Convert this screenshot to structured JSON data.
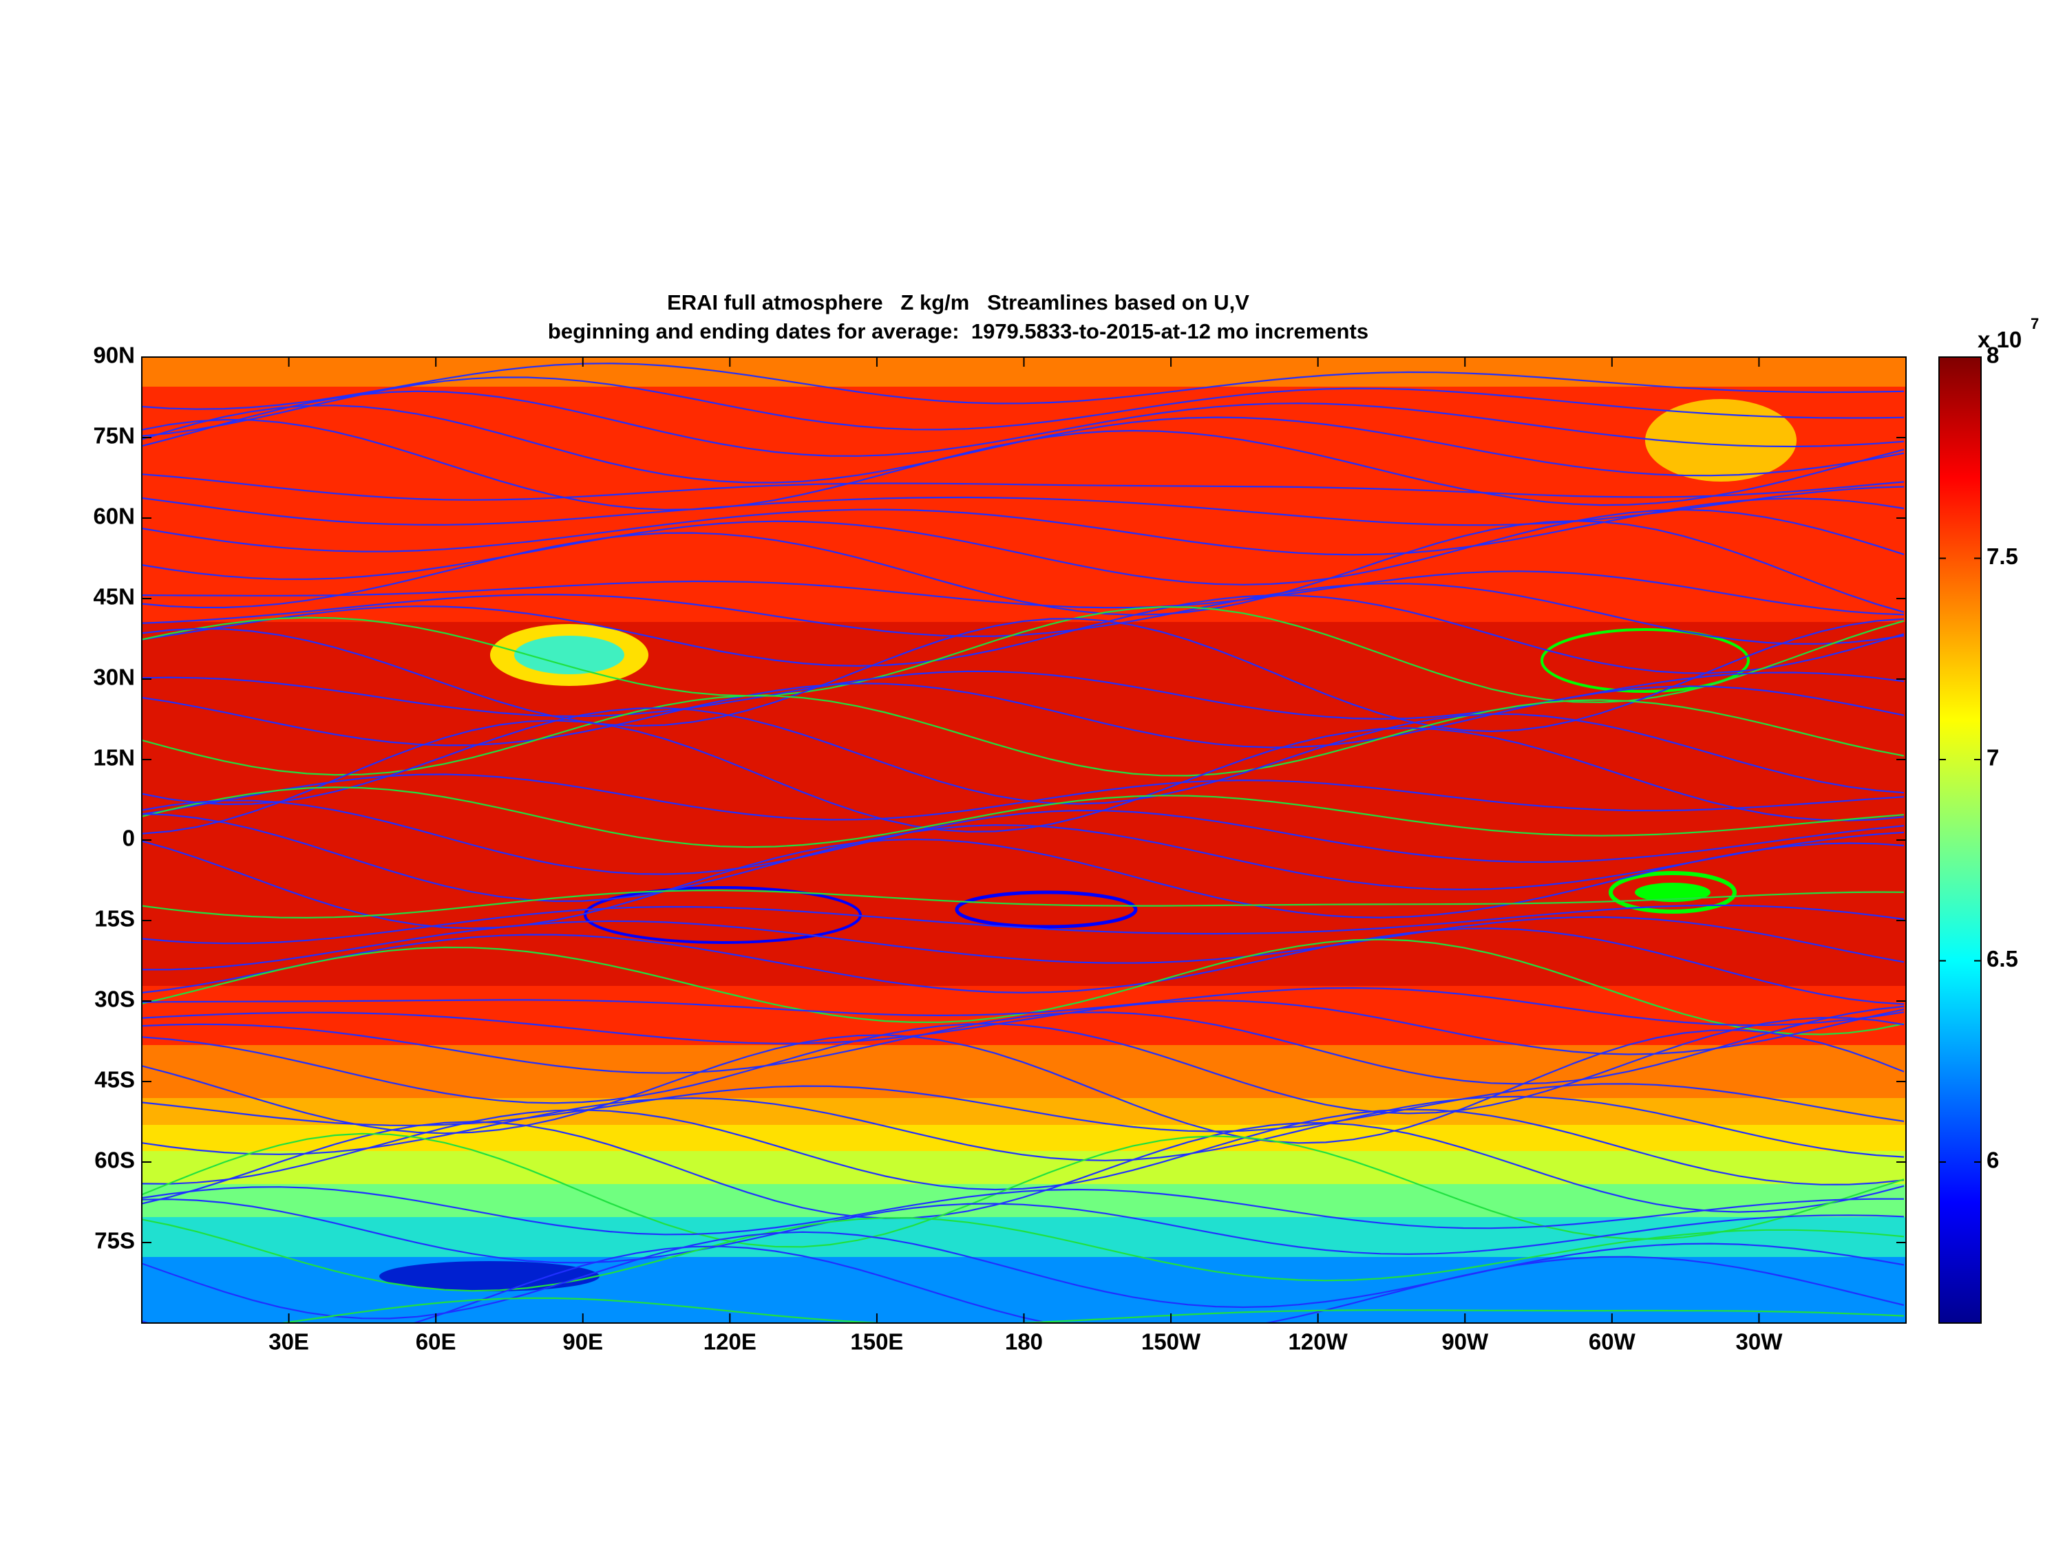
{
  "chart_data": {
    "type": "contour-map",
    "title": "ERAI full atmosphere   Z kg/m   Streamlines based on U,V",
    "subtitle": "beginning and ending dates for average:  1979.5833-to-2015-at-12 mo increments",
    "xlim": [
      0,
      360
    ],
    "ylim": [
      -90,
      90
    ],
    "xticks": [
      {
        "value": 30,
        "label": "30E"
      },
      {
        "value": 60,
        "label": "60E"
      },
      {
        "value": 90,
        "label": "90E"
      },
      {
        "value": 120,
        "label": "120E"
      },
      {
        "value": 150,
        "label": "150E"
      },
      180,
      {
        "value": 210,
        "label": "150W"
      },
      {
        "value": 240,
        "label": "120W"
      },
      {
        "value": 270,
        "label": "90W"
      },
      {
        "value": 300,
        "label": "60W"
      },
      {
        "value": 330,
        "label": "30W"
      }
    ],
    "yticks": [
      {
        "value": 90,
        "label": "90N"
      },
      {
        "value": 75,
        "label": "75N"
      },
      {
        "value": 60,
        "label": "60N"
      },
      {
        "value": 45,
        "label": "45N"
      },
      {
        "value": 30,
        "label": "30N"
      },
      {
        "value": 15,
        "label": "15N"
      },
      0,
      {
        "value": -15,
        "label": "15S"
      },
      {
        "value": -30,
        "label": "30S"
      },
      {
        "value": -45,
        "label": "45S"
      },
      {
        "value": -60,
        "label": "60S"
      },
      {
        "value": -75,
        "label": "75S"
      }
    ],
    "colorbar": {
      "colormap": "jet",
      "clim": [
        5.6,
        8
      ],
      "ticks": [
        6,
        6.5,
        7,
        7.5,
        8
      ],
      "multiplier": "x 10",
      "exponent": "7"
    }
  }
}
